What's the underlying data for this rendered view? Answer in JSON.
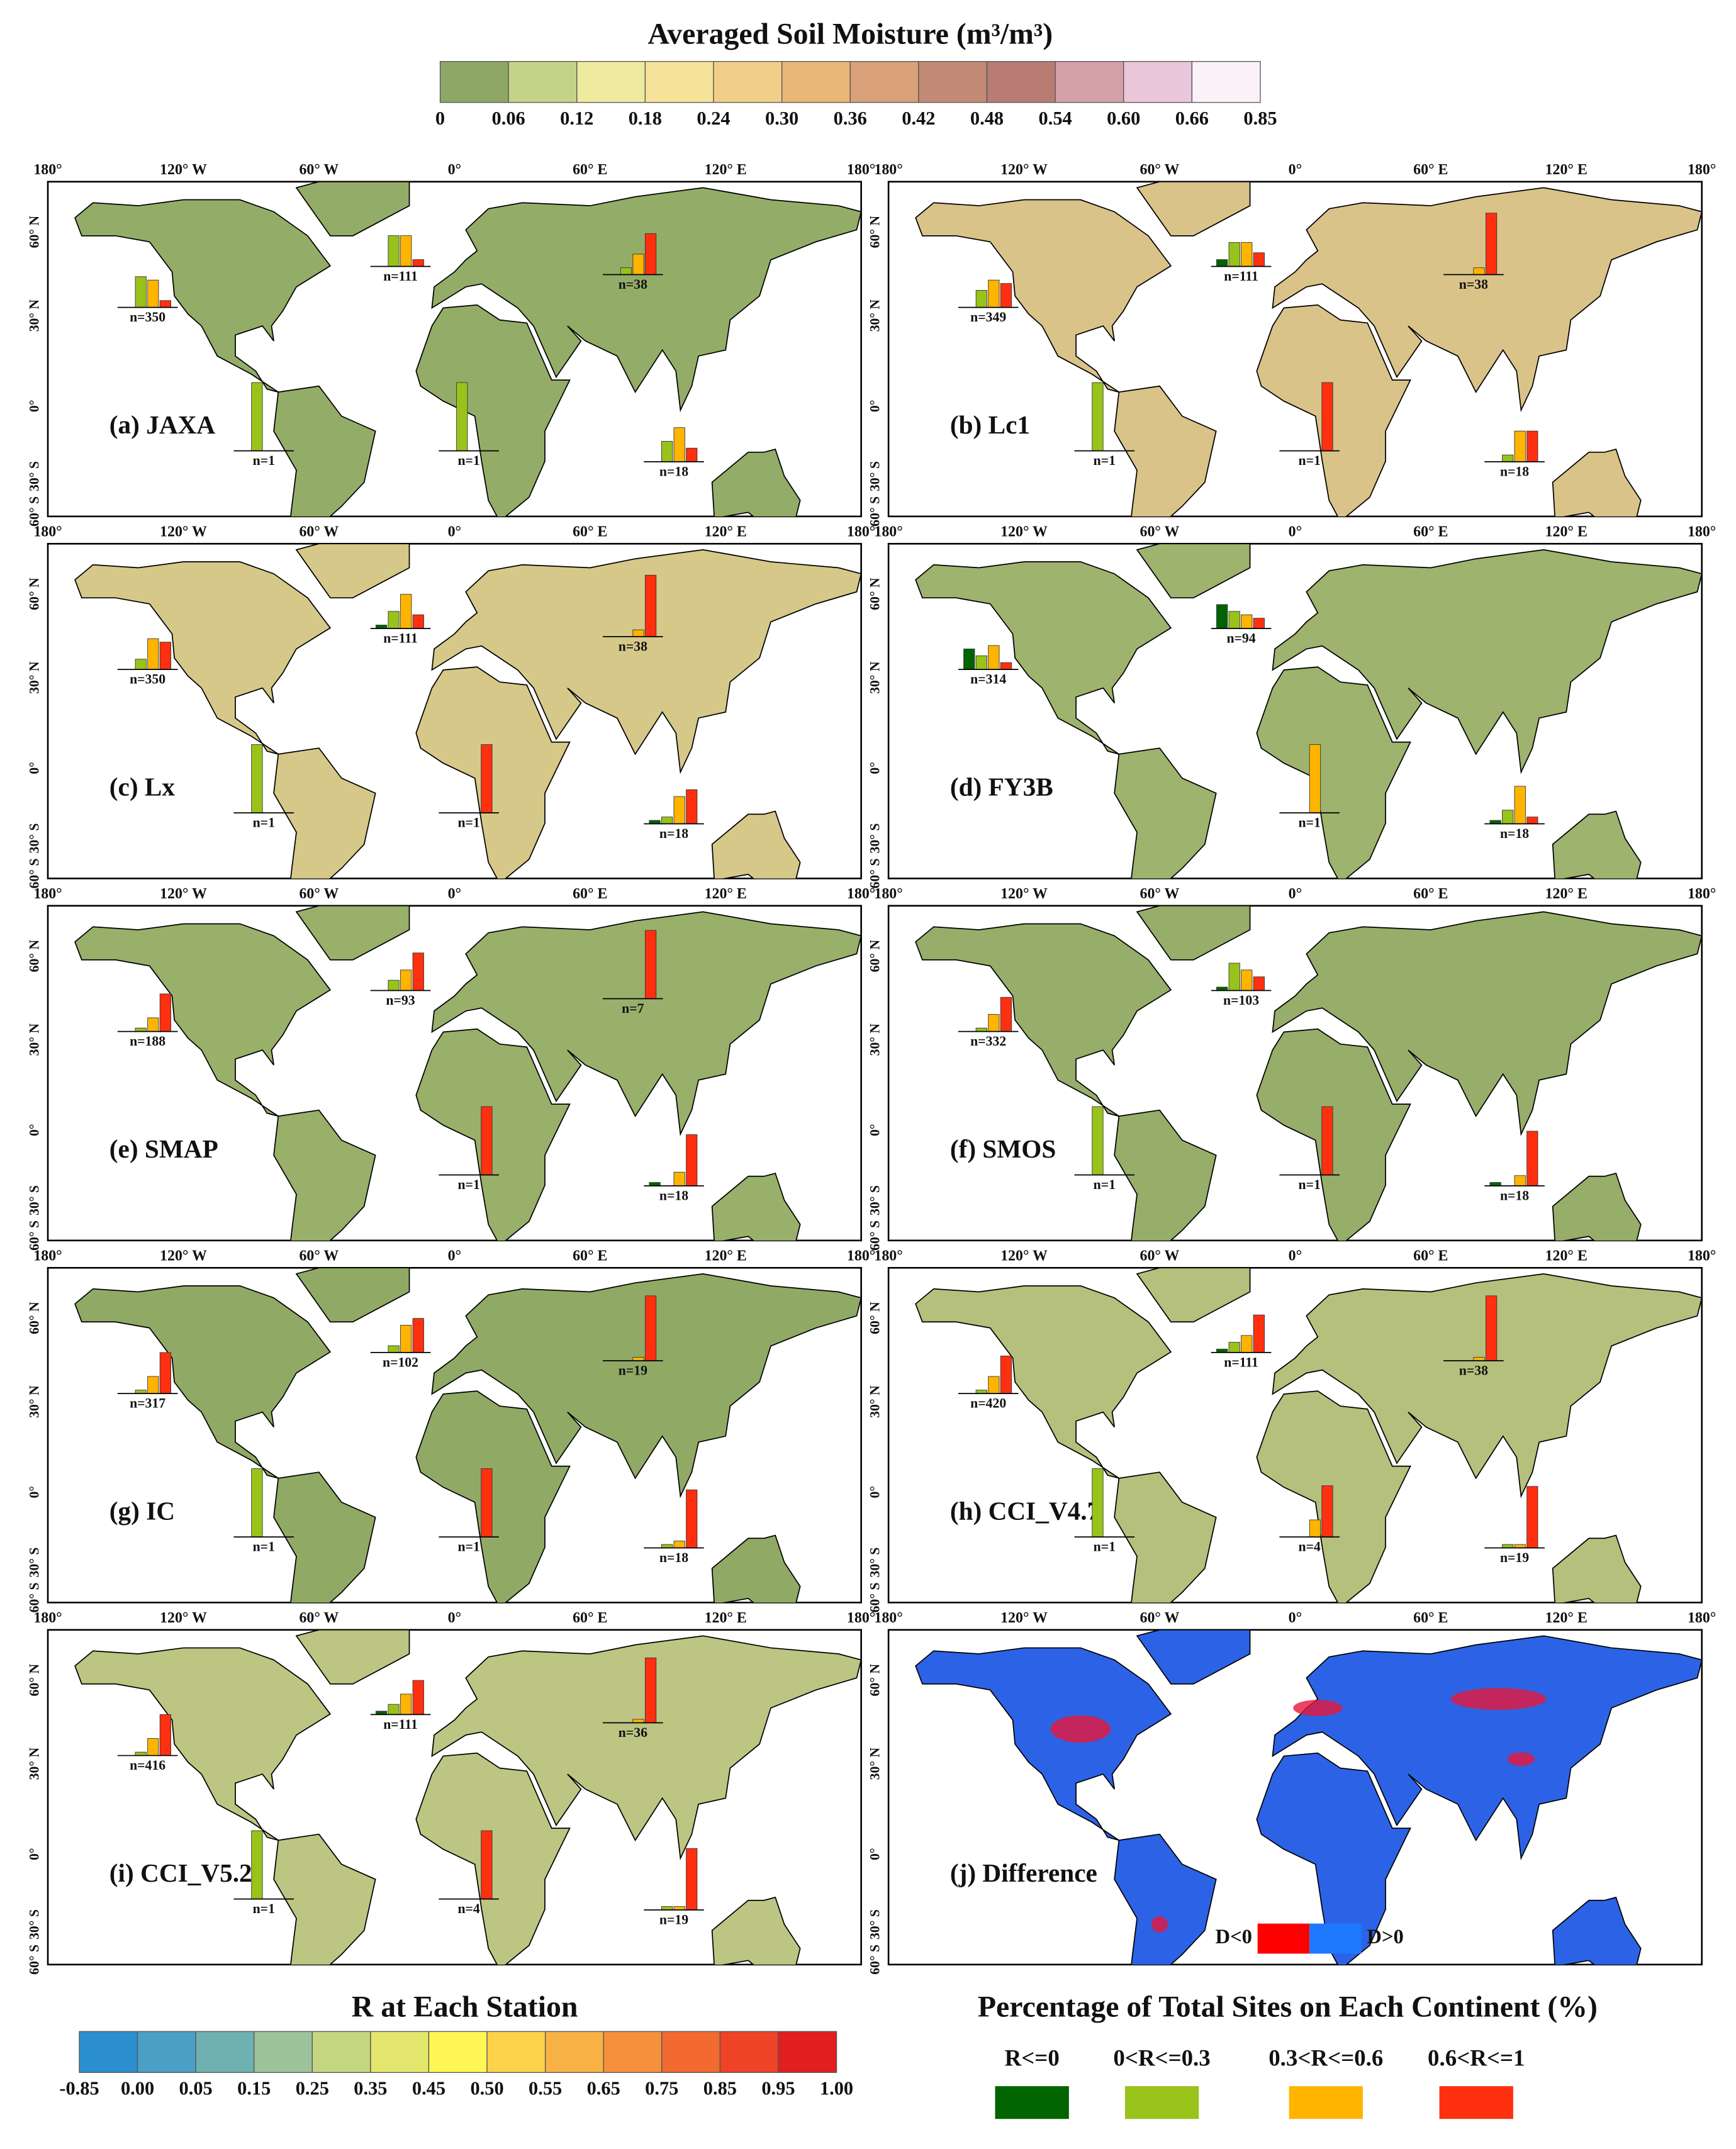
{
  "colorbar_top": {
    "title": "Averaged Soil Moisture (m³/m³)",
    "ticks": [
      0,
      0.06,
      0.12,
      0.18,
      0.24,
      {
        "value": 0.3,
        "label": "0.30"
      },
      0.36,
      0.42,
      0.48,
      0.54,
      {
        "value": 0.6,
        "label": "0.60"
      },
      0.66,
      0.85
    ],
    "colors": [
      "#8ea766",
      "#c5d389",
      "#eeeb9f",
      "#f7e29a",
      "#f1cf88",
      "#e9b777",
      "#d8a17a",
      "#c38a76",
      "#b97c74",
      "#d4a0a8",
      "#eac6da",
      "#fbf1f8"
    ]
  },
  "lon_labels": [
    "180°",
    "120° W",
    "60° W",
    "0°",
    "60° E",
    "120° E",
    "180°"
  ],
  "lat_labels": [
    "60° N",
    "30° N",
    "0°",
    "30° S",
    "60° S"
  ],
  "panels": [
    {
      "label": "(a) JAXA",
      "fill": "#93ad68",
      "insets": [
        {
          "label": "n=350",
          "values": [
            0,
            45,
            40,
            10
          ]
        },
        {
          "label": "n=111",
          "values": [
            0,
            45,
            45,
            10
          ]
        },
        {
          "label": "n=38",
          "values": [
            0,
            10,
            30,
            60
          ]
        },
        {
          "label": "n=1",
          "values": [
            0,
            100,
            0,
            0
          ]
        },
        {
          "label": "n=1",
          "values": [
            0,
            100,
            0,
            0
          ]
        },
        {
          "label": "n=18",
          "values": [
            0,
            30,
            50,
            20
          ]
        }
      ]
    },
    {
      "label": "(b) Lc1",
      "fill": "#d9c389",
      "insets": [
        {
          "label": "n=349",
          "values": [
            0,
            25,
            40,
            35
          ]
        },
        {
          "label": "n=111",
          "values": [
            10,
            35,
            35,
            20
          ]
        },
        {
          "label": "n=38",
          "values": [
            0,
            0,
            10,
            90
          ]
        },
        {
          "label": "n=1",
          "values": [
            0,
            100,
            0,
            0
          ]
        },
        {
          "label": "n=1",
          "values": [
            0,
            0,
            0,
            100
          ]
        },
        {
          "label": "n=18",
          "values": [
            0,
            10,
            45,
            45
          ]
        }
      ]
    },
    {
      "label": "(c) Lx",
      "fill": "#d6c888",
      "insets": [
        {
          "label": "n=350",
          "values": [
            0,
            15,
            45,
            40
          ]
        },
        {
          "label": "n=111",
          "values": [
            5,
            25,
            50,
            20
          ]
        },
        {
          "label": "n=38",
          "values": [
            0,
            0,
            10,
            90
          ]
        },
        {
          "label": "n=1",
          "values": [
            0,
            100,
            0,
            0
          ]
        },
        {
          "label": "n=1",
          "values": [
            0,
            0,
            0,
            100
          ]
        },
        {
          "label": "n=18",
          "values": [
            5,
            10,
            40,
            50
          ]
        }
      ]
    },
    {
      "label": "(d) FY3B",
      "fill": "#9db36e",
      "insets": [
        {
          "label": "n=314",
          "values": [
            30,
            20,
            35,
            10
          ]
        },
        {
          "label": "n=94",
          "values": [
            35,
            25,
            20,
            15
          ]
        },
        {
          "label": "n=1",
          "values": [
            0,
            0,
            100,
            0
          ]
        },
        {
          "label": "n=18",
          "values": [
            5,
            20,
            55,
            10
          ]
        }
      ]
    },
    {
      "label": "(e) SMAP",
      "fill": "#98b06a",
      "insets": [
        {
          "label": "n=188",
          "values": [
            0,
            5,
            20,
            55
          ]
        },
        {
          "label": "n=93",
          "values": [
            0,
            15,
            30,
            55
          ]
        },
        {
          "label": "n=7",
          "values": [
            0,
            0,
            0,
            100
          ]
        },
        {
          "label": "n=1",
          "values": [
            0,
            0,
            0,
            100
          ]
        },
        {
          "label": "n=18",
          "values": [
            5,
            0,
            20,
            75
          ]
        }
      ]
    },
    {
      "label": "(f) SMOS",
      "fill": "#96ae69",
      "insets": [
        {
          "label": "n=332",
          "values": [
            0,
            5,
            25,
            50
          ]
        },
        {
          "label": "n=103",
          "values": [
            5,
            40,
            30,
            20
          ]
        },
        {
          "label": "n=1",
          "values": [
            0,
            100,
            0,
            0
          ]
        },
        {
          "label": "n=1",
          "values": [
            0,
            0,
            0,
            100
          ]
        },
        {
          "label": "n=18",
          "values": [
            5,
            0,
            15,
            80
          ]
        }
      ]
    },
    {
      "label": "(g) IC",
      "fill": "#90aa66",
      "insets": [
        {
          "label": "n=317",
          "values": [
            0,
            5,
            25,
            60
          ]
        },
        {
          "label": "n=102",
          "values": [
            0,
            10,
            40,
            50
          ]
        },
        {
          "label": "n=19",
          "values": [
            0,
            0,
            5,
            95
          ]
        },
        {
          "label": "n=1",
          "values": [
            0,
            100,
            0,
            0
          ]
        },
        {
          "label": "n=1",
          "values": [
            0,
            0,
            0,
            100
          ]
        },
        {
          "label": "n=18",
          "values": [
            0,
            5,
            10,
            85
          ]
        }
      ]
    },
    {
      "label": "(h) CCI_V4.7",
      "fill": "#b5c07c",
      "insets": [
        {
          "label": "n=420",
          "values": [
            0,
            5,
            25,
            55
          ]
        },
        {
          "label": "n=111",
          "values": [
            5,
            15,
            25,
            55
          ]
        },
        {
          "label": "n=38",
          "values": [
            0,
            0,
            5,
            95
          ]
        },
        {
          "label": "n=1",
          "values": [
            0,
            100,
            0,
            0
          ]
        },
        {
          "label": "n=4",
          "values": [
            0,
            0,
            25,
            75
          ]
        },
        {
          "label": "n=19",
          "values": [
            0,
            5,
            5,
            90
          ]
        }
      ]
    },
    {
      "label": "(i) CCI_V5.2",
      "fill": "#bcc582",
      "insets": [
        {
          "label": "n=416",
          "values": [
            0,
            5,
            25,
            60
          ]
        },
        {
          "label": "n=111",
          "values": [
            5,
            15,
            30,
            50
          ]
        },
        {
          "label": "n=36",
          "values": [
            0,
            0,
            5,
            95
          ]
        },
        {
          "label": "n=1",
          "values": [
            0,
            100,
            0,
            0
          ]
        },
        {
          "label": "n=4",
          "values": [
            0,
            0,
            0,
            100
          ]
        },
        {
          "label": "n=19",
          "values": [
            0,
            5,
            5,
            90
          ]
        }
      ]
    },
    {
      "label": "(j) Difference",
      "fill": "#2c63e6"
    }
  ],
  "difference_legend": [
    {
      "label": "D<0",
      "color": "#ff0000"
    },
    {
      "label": "D>0",
      "color": "#1e78ff"
    }
  ],
  "colorbar_r": {
    "title": "R at Each Station",
    "ticks": [
      -0.85,
      {
        "value": 0,
        "label": "0.00"
      },
      0.05,
      0.15,
      0.25,
      0.35,
      0.45,
      {
        "value": 0.5,
        "label": "0.50"
      },
      0.55,
      0.65,
      0.75,
      0.85,
      0.95,
      {
        "value": 1,
        "label": "1.00"
      }
    ],
    "colors": [
      "#2b8fcf",
      "#4a9fc6",
      "#6fb0b0",
      "#9cc39a",
      "#c5d680",
      "#e2e66c",
      "#fdf654",
      "#fbd24a",
      "#f8b144",
      "#f5903c",
      "#f26a30",
      "#ee4327",
      "#e31e1e"
    ]
  },
  "percent_legend": {
    "title": "Percentage of Total Sites on Each Continent (%)",
    "items": [
      {
        "label": "R<=0",
        "color": "#006400"
      },
      {
        "label": "0<R<=0.3",
        "color": "#99c21b"
      },
      {
        "label": "0.3<R<=0.6",
        "color": "#ffb400"
      },
      {
        "label": "0.6<R<=1",
        "color": "#ff3010"
      }
    ]
  }
}
